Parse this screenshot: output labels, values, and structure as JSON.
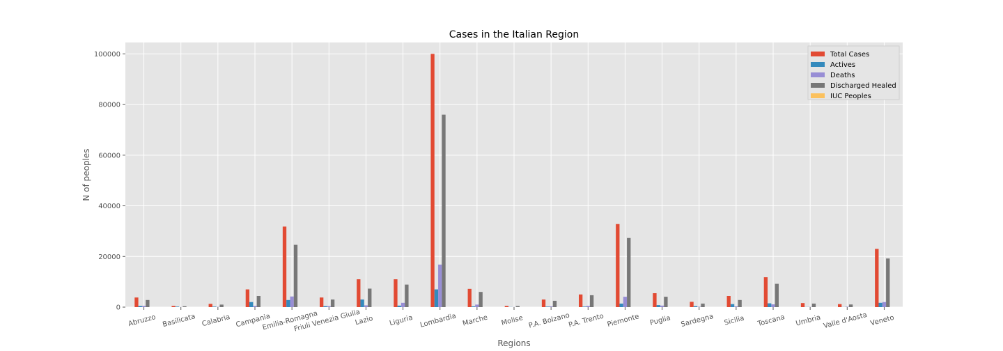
{
  "chart_data": {
    "type": "bar",
    "title": "Cases in the Italian Region",
    "xlabel": "Regions",
    "ylabel": "N of peoples",
    "ylim": [
      0,
      104500
    ],
    "yticks": [
      0,
      20000,
      40000,
      60000,
      80000,
      100000
    ],
    "grid": true,
    "legend_position": "top-right",
    "categories": [
      "Abruzzo",
      "Basilicata",
      "Calabria",
      "Campania",
      "Emilia-Romagna",
      "Friuli Venezia Giulia",
      "Lazio",
      "Liguria",
      "Lombardia",
      "Marche",
      "Molise",
      "P.A. Bolzano",
      "P.A. Trento",
      "Piemonte",
      "Puglia",
      "Sardegna",
      "Sicilia",
      "Toscana",
      "Umbria",
      "Valle d'Aosta",
      "Veneto"
    ],
    "series": [
      {
        "name": "Total Cases",
        "color": "#E24A33",
        "values": [
          3800,
          500,
          1300,
          7000,
          31800,
          3800,
          11000,
          11000,
          100000,
          7200,
          500,
          3000,
          5000,
          32800,
          5500,
          2100,
          4400,
          11800,
          1600,
          1200,
          23000
        ]
      },
      {
        "name": "Actives",
        "color": "#348ABD",
        "values": [
          500,
          200,
          200,
          2000,
          2800,
          400,
          3000,
          600,
          7000,
          300,
          50,
          200,
          200,
          1400,
          800,
          400,
          1200,
          1500,
          50,
          40,
          1700
        ]
      },
      {
        "name": "Deaths",
        "color": "#988ED5",
        "values": [
          500,
          30,
          100,
          500,
          4200,
          400,
          700,
          1700,
          16800,
          1000,
          30,
          300,
          500,
          4100,
          600,
          150,
          300,
          1100,
          80,
          150,
          2000
        ]
      },
      {
        "name": "Discharged Healed",
        "color": "#777777",
        "values": [
          2800,
          350,
          1000,
          4400,
          24600,
          3000,
          7300,
          8900,
          76000,
          6000,
          450,
          2500,
          4700,
          27300,
          4100,
          1400,
          2800,
          9200,
          1400,
          1050,
          19200
        ]
      },
      {
        "name": "IUC Peoples",
        "color": "#FBC15E",
        "values": [
          0,
          0,
          0,
          0,
          0,
          0,
          0,
          0,
          0,
          0,
          0,
          0,
          0,
          0,
          0,
          0,
          0,
          0,
          0,
          0,
          0
        ]
      }
    ]
  }
}
